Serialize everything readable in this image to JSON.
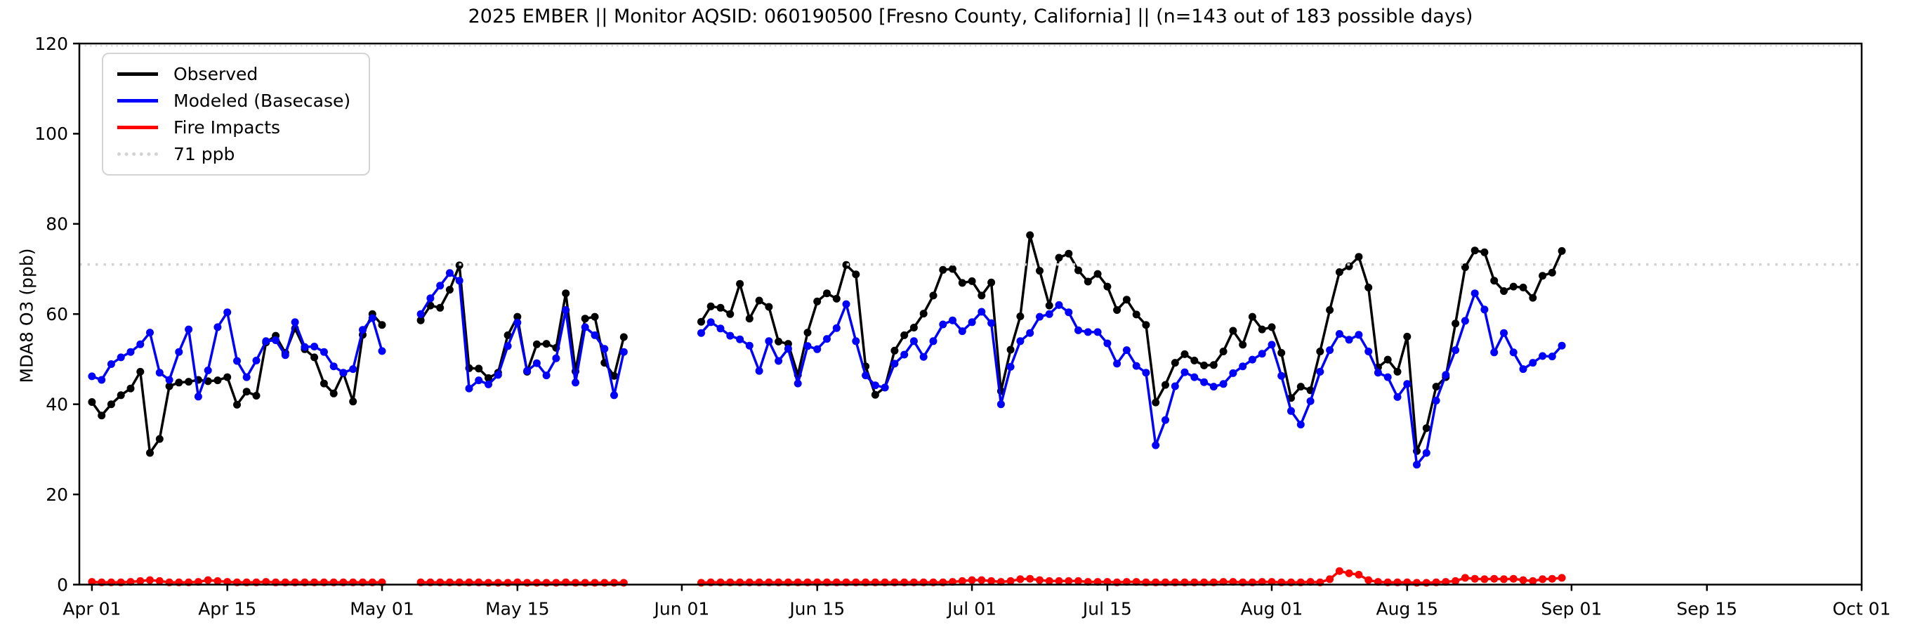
{
  "chart_data": {
    "type": "line",
    "title": "2025 EMBER || Monitor AQSID: 060190500 [Fresno County, California] || (n=143 out of 183 possible days)",
    "ylabel": "MDA8 O3 (ppb)",
    "ylim": [
      0,
      120
    ],
    "yticks": [
      0,
      20,
      40,
      60,
      80,
      100,
      120
    ],
    "x_tick_labels": [
      "Apr 01",
      "Apr 15",
      "May 01",
      "May 15",
      "Jun 01",
      "Jun 15",
      "Jul 01",
      "Jul 15",
      "Aug 01",
      "Aug 15",
      "Sep 01",
      "Sep 15",
      "Oct 01"
    ],
    "x_tick_days": [
      0,
      14,
      30,
      44,
      61,
      75,
      91,
      105,
      122,
      136,
      153,
      167,
      183
    ],
    "xlim_days": [
      -1.3,
      183
    ],
    "start_date_label": "Apr 01",
    "end_of_data_label": "Sep 01",
    "days_observed": 143,
    "days_possible": 183,
    "grid": false,
    "legend_position": "upper left",
    "reference_lines": [
      {
        "value": 71,
        "label": "71 ppb",
        "color": "#d3d3d3",
        "style": "dotted"
      },
      {
        "value": 119.5,
        "label": "",
        "color": "#dcdcdc",
        "style": "fine-dotted"
      }
    ],
    "series": [
      {
        "name": "Observed",
        "color": "#000000",
        "values": [
          40.5,
          37.5,
          40,
          42,
          43.5,
          47.2,
          29.2,
          32.3,
          44,
          44.8,
          45,
          45.4,
          45.1,
          45.3,
          46,
          39.9,
          42.8,
          41.9,
          53.7,
          55.2,
          51.4,
          56.8,
          52.2,
          50.4,
          44.6,
          42.4,
          46.9,
          40.6,
          55.4,
          60,
          57.6,
          null,
          null,
          null,
          58.6,
          61.9,
          61.4,
          65.4,
          70.8,
          48,
          47.9,
          45.8,
          47,
          55.3,
          59.4,
          47.2,
          53.3,
          53.4,
          52.5,
          64.6,
          47.3,
          59,
          59.4,
          49.2,
          46.3,
          54.9,
          null,
          null,
          null,
          null,
          null,
          null,
          null,
          58.3,
          61.7,
          61.4,
          60,
          66.7,
          59,
          63,
          61.6,
          53.9,
          53.4,
          46.5,
          55.9,
          62.8,
          64.6,
          63.4,
          70.9,
          68.8,
          48.4,
          42.1,
          43.7,
          51.9,
          55.3,
          57,
          60.1,
          64.1,
          69.8,
          70,
          66.9,
          67.3,
          64.1,
          67,
          42.9,
          52.1,
          59.5,
          77.5,
          69.6,
          61.9,
          72.5,
          73.4,
          69.7,
          67.2,
          68.9,
          66.1,
          60.9,
          63.2,
          59.9,
          57.6,
          40.4,
          44.3,
          49.2,
          51.1,
          49.7,
          48.6,
          48.7,
          51.7,
          56.3,
          53.2,
          59.4,
          56.6,
          57.1,
          51.4,
          41.4,
          43.9,
          43.1,
          51.7,
          60.9,
          69.3,
          70.6,
          72.7,
          65.9,
          48.2,
          49.9,
          47.2,
          55,
          29.6,
          34.7,
          43.9,
          46,
          57.9,
          70.4,
          74.1,
          73.7,
          67.4,
          65.1,
          66.1,
          65.9,
          63.6,
          68.5,
          69.2,
          74
        ]
      },
      {
        "name": "Modeled (Basecase)",
        "color": "#0000ff",
        "values": [
          46.2,
          45.4,
          48.9,
          50.4,
          51.6,
          53.3,
          55.9,
          47,
          45.4,
          51.6,
          56.6,
          41.7,
          47.5,
          57.1,
          60.4,
          49.6,
          46,
          49.7,
          54,
          54.2,
          50.9,
          58.2,
          52.7,
          52.8,
          51.6,
          48.4,
          47,
          47.8,
          56.5,
          59.1,
          51.8,
          null,
          null,
          null,
          60,
          63.5,
          66.3,
          69.1,
          67.4,
          43.5,
          45.3,
          44.4,
          46.5,
          52.9,
          58.1,
          47.4,
          49.1,
          46.4,
          50.2,
          60.9,
          44.8,
          57.1,
          55.3,
          52.3,
          42,
          51.6,
          null,
          null,
          null,
          null,
          null,
          null,
          null,
          55.8,
          58.2,
          56.8,
          55.2,
          54.4,
          53,
          47.4,
          54,
          49.6,
          52.3,
          44.6,
          52.9,
          52.2,
          54.5,
          56.9,
          62.2,
          54,
          46.4,
          44.2,
          43.7,
          49,
          51,
          54,
          50.5,
          54,
          57.7,
          58.6,
          56.2,
          58.2,
          60.5,
          58,
          40,
          48.3,
          54,
          55.8,
          59.4,
          60,
          62,
          60.4,
          56.4,
          56,
          56,
          53.5,
          49,
          52,
          48.5,
          47,
          30.9,
          36.5,
          44,
          47.1,
          46,
          44.9,
          43.9,
          44.5,
          46.9,
          48.4,
          49.9,
          51.2,
          53.2,
          46.3,
          38.5,
          35.5,
          40.7,
          47.2,
          52,
          55.6,
          54.3,
          55.4,
          51.7,
          47,
          46,
          41.6,
          44.5,
          26.6,
          29.2,
          40.8,
          46.5,
          52,
          58.5,
          64.6,
          61,
          51.5,
          55.8,
          51.5,
          47.8,
          49.2,
          50.7,
          50.6,
          53
        ]
      },
      {
        "name": "Fire Impacts",
        "color": "#ff0000",
        "values": [
          0.6,
          0.5,
          0.5,
          0.5,
          0.6,
          0.8,
          1,
          0.8,
          0.5,
          0.5,
          0.5,
          0.6,
          1,
          0.8,
          0.6,
          0.5,
          0.5,
          0.5,
          0.6,
          0.5,
          0.5,
          0.5,
          0.5,
          0.5,
          0.5,
          0.5,
          0.5,
          0.5,
          0.5,
          0.5,
          0.5,
          null,
          null,
          null,
          0.5,
          0.5,
          0.5,
          0.5,
          0.5,
          0.5,
          0.5,
          0.4,
          0.4,
          0.4,
          0.5,
          0.4,
          0.4,
          0.4,
          0.4,
          0.5,
          0.4,
          0.4,
          0.4,
          0.4,
          0.4,
          0.4,
          null,
          null,
          null,
          null,
          null,
          null,
          null,
          0.4,
          0.5,
          0.5,
          0.5,
          0.5,
          0.5,
          0.5,
          0.5,
          0.5,
          0.5,
          0.5,
          0.5,
          0.5,
          0.5,
          0.5,
          0.5,
          0.5,
          0.5,
          0.5,
          0.5,
          0.5,
          0.5,
          0.5,
          0.5,
          0.5,
          0.5,
          0.6,
          0.8,
          1,
          1,
          0.8,
          0.6,
          0.8,
          1.2,
          1.3,
          1,
          0.8,
          0.8,
          0.8,
          0.8,
          0.6,
          0.6,
          0.6,
          0.5,
          0.6,
          0.6,
          0.5,
          0.5,
          0.5,
          0.5,
          0.5,
          0.5,
          0.5,
          0.5,
          0.6,
          0.6,
          0.5,
          0.5,
          0.6,
          0.6,
          0.5,
          0.5,
          0.5,
          0.6,
          0.5,
          1.2,
          3,
          2.5,
          2.2,
          1,
          0.6,
          0.5,
          0.5,
          0.5,
          0.4,
          0.4,
          0.5,
          0.6,
          0.8,
          1.5,
          1.3,
          1.2,
          1.3,
          1.2,
          1.3,
          1,
          0.8,
          1.2,
          1.3,
          1.5
        ]
      }
    ]
  }
}
